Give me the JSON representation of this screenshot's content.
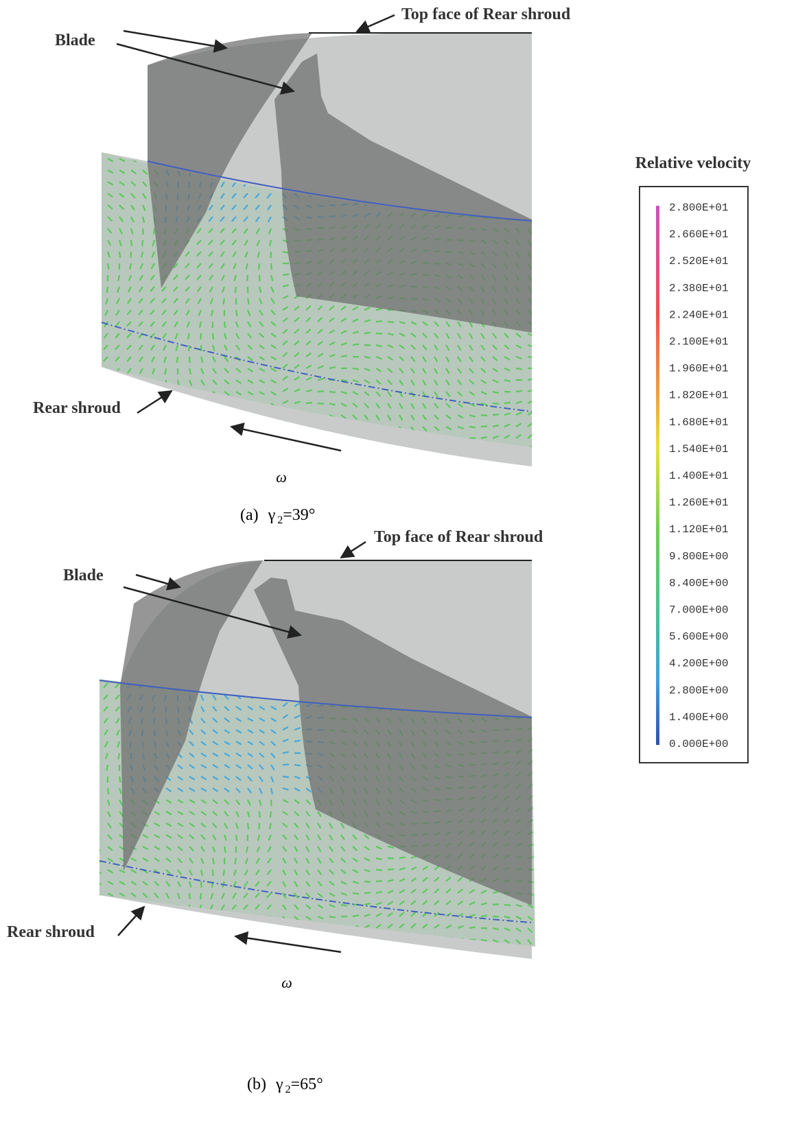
{
  "panels": [
    {
      "top_face_label": "Top face of Rear shroud",
      "blade_label": "Blade",
      "rear_shroud_label": "Rear shroud",
      "rotation_symbol": "ω",
      "caption": {
        "label": "(a)",
        "symbol": "γ",
        "subscript": "2",
        "rest": "=39°"
      }
    },
    {
      "top_face_label": "Top face of Rear shroud",
      "blade_label": "Blade",
      "rear_shroud_label": "Rear shroud",
      "rotation_symbol": "ω",
      "caption": {
        "label": "(b)",
        "symbol": "γ",
        "subscript": "2",
        "rest": "=65°"
      }
    }
  ],
  "legend": {
    "title": "Relative velocity",
    "labels": [
      "2.800E+01",
      "2.660E+01",
      "2.520E+01",
      "2.380E+01",
      "2.240E+01",
      "2.100E+01",
      "1.960E+01",
      "1.820E+01",
      "1.680E+01",
      "1.540E+01",
      "1.400E+01",
      "1.260E+01",
      "1.120E+01",
      "9.800E+00",
      "8.400E+00",
      "7.000E+00",
      "5.600E+00",
      "4.200E+00",
      "2.800E+00",
      "1.400E+00",
      "0.000E+00"
    ]
  }
}
